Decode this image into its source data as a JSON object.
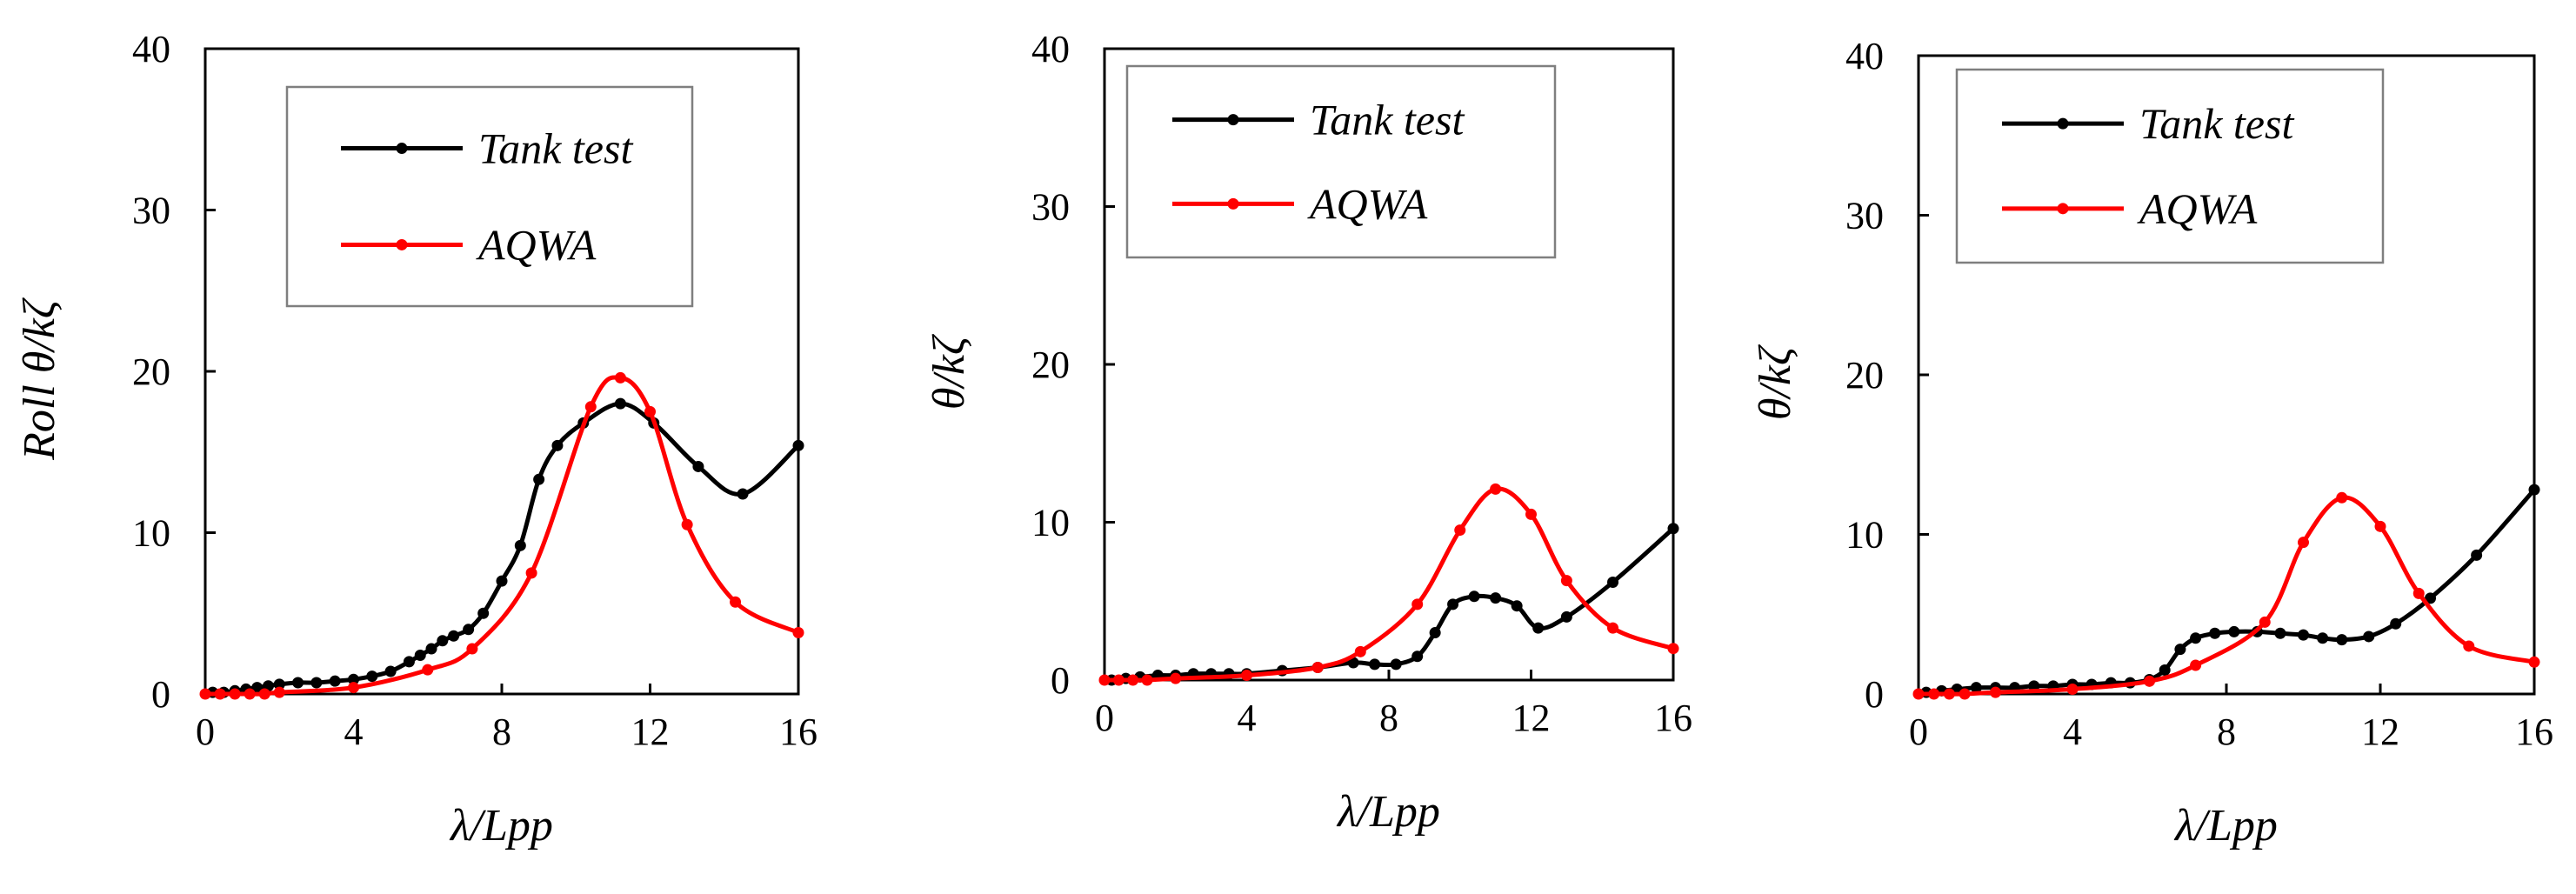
{
  "figure": {
    "panels_count": 3
  },
  "chart_data": [
    {
      "type": "line",
      "title": "",
      "xlabel": "λ/Lpp",
      "ylabel": "Roll θ/kζ",
      "xlim": [
        0,
        16
      ],
      "ylim": [
        0,
        40
      ],
      "xticks": [
        "0",
        "4",
        "8",
        "12",
        "16"
      ],
      "yticks": [
        "0",
        "10",
        "20",
        "30",
        "40"
      ],
      "grid": false,
      "legend": "top-left",
      "series": [
        {
          "name": "Tank test",
          "color": "#000000",
          "x": [
            0.2,
            0.5,
            0.8,
            1.1,
            1.4,
            1.7,
            2.0,
            2.5,
            3.0,
            3.5,
            4.0,
            4.5,
            5.0,
            5.5,
            5.8,
            6.1,
            6.4,
            6.7,
            7.1,
            7.5,
            8.0,
            8.5,
            9.0,
            9.5,
            10.2,
            11.2,
            12.1,
            13.3,
            14.5,
            16.0
          ],
          "y": [
            0.1,
            0.1,
            0.2,
            0.3,
            0.4,
            0.5,
            0.6,
            0.7,
            0.7,
            0.8,
            0.9,
            1.1,
            1.4,
            2.0,
            2.4,
            2.8,
            3.3,
            3.6,
            4.0,
            5.0,
            7.0,
            9.2,
            13.3,
            15.4,
            16.8,
            18.0,
            16.8,
            14.1,
            12.4,
            15.4
          ]
        },
        {
          "name": "AQWA",
          "color": "#ff0000",
          "x": [
            0.0,
            0.4,
            0.8,
            1.2,
            1.6,
            2.0,
            4.0,
            6.0,
            7.2,
            8.8,
            10.4,
            11.2,
            12.0,
            13.0,
            14.3,
            16.0
          ],
          "y": [
            0.0,
            0.0,
            0.0,
            0.0,
            0.0,
            0.1,
            0.4,
            1.5,
            2.8,
            7.5,
            17.8,
            19.6,
            17.5,
            10.5,
            5.7,
            3.8
          ]
        }
      ]
    },
    {
      "type": "line",
      "title": "",
      "xlabel": "λ/Lpp",
      "ylabel": "θ/kζ",
      "xlim": [
        0,
        16
      ],
      "ylim": [
        0,
        40
      ],
      "xticks": [
        "0",
        "4",
        "8",
        "12",
        "16"
      ],
      "yticks": [
        "0",
        "10",
        "20",
        "30",
        "40"
      ],
      "grid": false,
      "legend": "top-left",
      "series": [
        {
          "name": "Tank test",
          "color": "#000000",
          "x": [
            0.2,
            0.6,
            1.0,
            1.5,
            2.0,
            2.5,
            3.0,
            3.5,
            4.0,
            5.0,
            6.0,
            7.0,
            7.6,
            8.2,
            8.8,
            9.3,
            9.8,
            10.4,
            11.0,
            11.6,
            12.2,
            13.0,
            14.3,
            16.0
          ],
          "y": [
            0.0,
            0.1,
            0.2,
            0.3,
            0.3,
            0.4,
            0.4,
            0.4,
            0.4,
            0.6,
            0.8,
            1.1,
            1.0,
            1.0,
            1.5,
            3.0,
            4.8,
            5.3,
            5.2,
            4.7,
            3.3,
            4.0,
            6.2,
            9.6
          ]
        },
        {
          "name": "AQWA",
          "color": "#ff0000",
          "x": [
            0.0,
            0.4,
            0.8,
            1.2,
            2.0,
            4.0,
            6.0,
            7.2,
            8.8,
            10.0,
            11.0,
            12.0,
            13.0,
            14.3,
            16.0
          ],
          "y": [
            0.0,
            0.0,
            0.0,
            0.0,
            0.1,
            0.3,
            0.8,
            1.8,
            4.8,
            9.5,
            12.1,
            10.5,
            6.3,
            3.3,
            2.0
          ]
        }
      ]
    },
    {
      "type": "line",
      "title": "",
      "xlabel": "λ/Lpp",
      "ylabel": "θ/kζ",
      "xlim": [
        0,
        16
      ],
      "ylim": [
        0,
        40
      ],
      "xticks": [
        "0",
        "4",
        "8",
        "12",
        "16"
      ],
      "yticks": [
        "0",
        "10",
        "20",
        "30",
        "40"
      ],
      "grid": false,
      "legend": "top-left",
      "series": [
        {
          "name": "Tank test",
          "color": "#000000",
          "x": [
            0.2,
            0.6,
            1.0,
            1.5,
            2.0,
            2.5,
            3.0,
            3.5,
            4.0,
            4.5,
            5.0,
            5.5,
            6.0,
            6.4,
            6.8,
            7.2,
            7.7,
            8.2,
            8.8,
            9.4,
            10.0,
            10.5,
            11.0,
            11.7,
            12.4,
            13.3,
            14.5,
            16.0
          ],
          "y": [
            0.1,
            0.2,
            0.3,
            0.4,
            0.4,
            0.4,
            0.5,
            0.5,
            0.6,
            0.6,
            0.7,
            0.7,
            0.9,
            1.5,
            2.8,
            3.5,
            3.8,
            3.9,
            3.9,
            3.8,
            3.7,
            3.5,
            3.4,
            3.6,
            4.4,
            6.0,
            8.7,
            12.8
          ]
        },
        {
          "name": "AQWA",
          "color": "#ff0000",
          "x": [
            0.0,
            0.4,
            0.8,
            1.2,
            2.0,
            4.0,
            6.0,
            7.2,
            9.0,
            10.0,
            11.0,
            12.0,
            13.0,
            14.3,
            16.0
          ],
          "y": [
            0.0,
            0.0,
            0.0,
            0.0,
            0.1,
            0.3,
            0.8,
            1.8,
            4.5,
            9.5,
            12.3,
            10.5,
            6.3,
            3.0,
            2.0
          ]
        }
      ]
    }
  ]
}
